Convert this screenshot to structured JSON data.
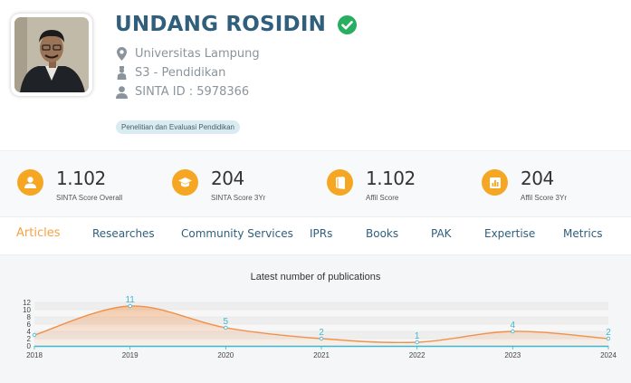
{
  "profile": {
    "name": "UNDANG ROSIDIN",
    "affiliation": "Universitas Lampung",
    "degree": "S3 - Pendidikan",
    "sinta_id": "SINTA ID : 5978366",
    "tag": "Penelitian dan Evaluasi Pendidikan"
  },
  "scores": [
    {
      "value": "1.102",
      "label": "SINTA Score Overall",
      "icon": "user-icon"
    },
    {
      "value": "204",
      "label": "SINTA Score 3Yr",
      "icon": "graduation-cap-icon"
    },
    {
      "value": "1.102",
      "label": "Affil Score",
      "icon": "book-icon"
    },
    {
      "value": "204",
      "label": "Affil Score 3Yr",
      "icon": "bar-chart-icon"
    }
  ],
  "tabs": [
    "Articles",
    "Researches",
    "Community Services",
    "IPRs",
    "Books",
    "PAK",
    "Expertise",
    "Metrics"
  ],
  "colors": {
    "accent": "#f5a623",
    "name": "#2f5f7c",
    "verified": "#27ae60",
    "line": "#f0914a",
    "label": "#3fb6d0"
  },
  "chart_data": {
    "type": "area",
    "title": "Latest number of publications",
    "x": [
      "2018",
      "2019",
      "2020",
      "2021",
      "2022",
      "2023",
      "2024"
    ],
    "values": [
      3,
      11,
      5,
      2,
      1,
      4,
      2
    ],
    "data_labels": [
      "",
      "11",
      "5",
      "2",
      "1",
      "4",
      "2"
    ],
    "ylim": [
      0,
      12
    ],
    "yticks": [
      "0",
      "2",
      "4",
      "6",
      "8",
      "10",
      "12"
    ],
    "grid": true
  }
}
